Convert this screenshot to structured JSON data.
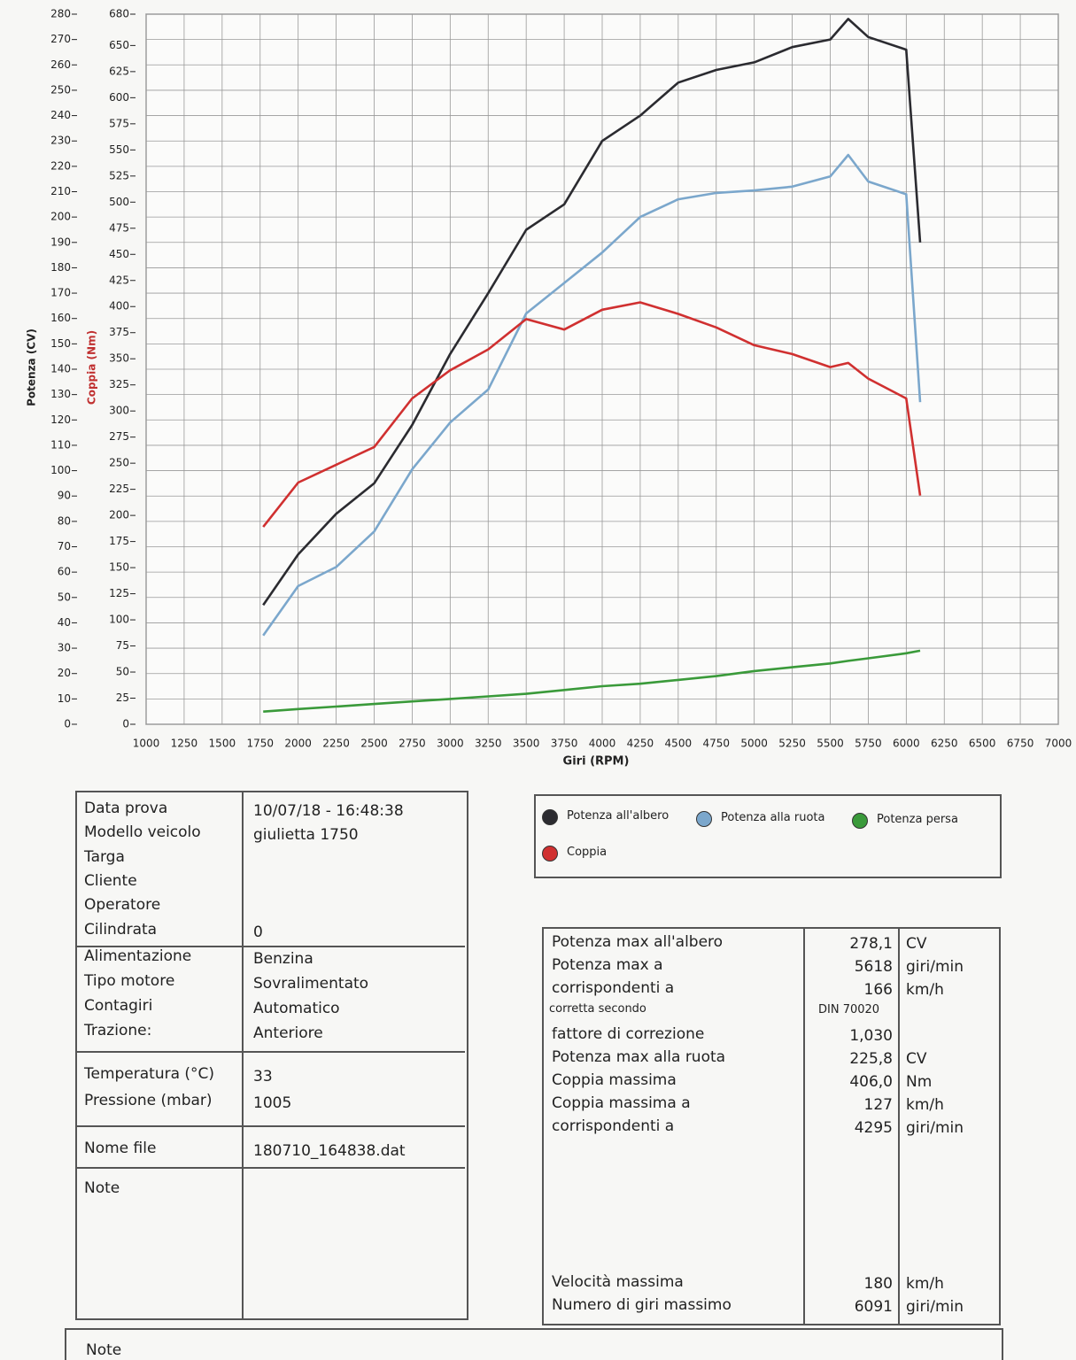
{
  "chart_data": {
    "type": "line",
    "ylabel": "Potenza (CV)",
    "y2label": "Coppia (Nm)",
    "xlabel": "Giri (RPM)",
    "x": [
      1770,
      2000,
      2250,
      2500,
      2750,
      3000,
      3250,
      3500,
      3750,
      4000,
      4250,
      4500,
      4750,
      5000,
      5250,
      5500,
      5618,
      5750,
      6000,
      6091
    ],
    "series": [
      {
        "name": "Potenza all'albero",
        "color": "#2b2b30",
        "values": [
          47,
          67,
          83,
          95,
          118,
          146,
          170,
          195,
          205,
          230,
          240,
          253,
          258,
          261,
          267,
          270,
          278.1,
          271,
          266,
          190
        ]
      },
      {
        "name": "Potenza alla ruota",
        "color": "#7ba7cc",
        "values": [
          35,
          54.5,
          62,
          76,
          100.5,
          119,
          132,
          162,
          174,
          186,
          200,
          207,
          209.5,
          210.5,
          212,
          216,
          224.5,
          214,
          209,
          127
        ]
      },
      {
        "name": "Potenza persa",
        "color": "#3a9a3a",
        "values": [
          5,
          6,
          7,
          8,
          9,
          10,
          11,
          12,
          13.5,
          15,
          16,
          17.5,
          19,
          21,
          22.5,
          24,
          25,
          26,
          28,
          29
        ]
      },
      {
        "name": "Coppia",
        "color": "#d03030",
        "axis": "y2",
        "values": [
          189,
          231.5,
          248.5,
          265.5,
          312,
          339,
          359,
          388,
          378,
          397,
          404,
          393,
          380,
          363,
          354.5,
          342,
          346,
          331,
          312,
          219
        ]
      }
    ],
    "xlim": [
      1000,
      7000
    ],
    "xticks": [
      1000,
      1250,
      1500,
      1750,
      2000,
      2250,
      2500,
      2750,
      3000,
      3250,
      3500,
      3750,
      4000,
      4250,
      4500,
      4750,
      5000,
      5250,
      5500,
      5750,
      6000,
      6250,
      6500,
      6750,
      7000
    ],
    "ylim": [
      0,
      280
    ],
    "yticks": [
      0,
      10,
      20,
      30,
      40,
      50,
      60,
      70,
      80,
      90,
      100,
      110,
      120,
      130,
      140,
      150,
      160,
      170,
      180,
      190,
      200,
      210,
      220,
      230,
      240,
      250,
      260,
      270,
      280
    ],
    "y2lim": [
      0,
      680
    ],
    "y2ticks": [
      0,
      25,
      50,
      75,
      100,
      125,
      150,
      175,
      200,
      225,
      250,
      275,
      300,
      325,
      350,
      375,
      400,
      425,
      450,
      475,
      500,
      525,
      550,
      575,
      600,
      625,
      650,
      680
    ],
    "grid": true
  },
  "info_table": {
    "groups": [
      [
        {
          "label": "Data prova",
          "value": "10/07/18 - 16:48:38"
        },
        {
          "label": "Modello veicolo",
          "value": "giulietta  1750"
        },
        {
          "label": "Targa"
        },
        {
          "label": "Cliente"
        },
        {
          "label": "Operatore"
        },
        {
          "label": "Cilindrata",
          "value": "0"
        }
      ],
      [
        {
          "label": "Alimentazione",
          "value": "Benzina"
        },
        {
          "label": "Tipo motore",
          "value": "Sovralimentato"
        },
        {
          "label": "Contagiri",
          "value": "Automatico"
        },
        {
          "label": "Trazione:",
          "value": "Anteriore"
        }
      ],
      [
        {
          "label": "Temperatura (°C)",
          "value": "33"
        },
        {
          "label": "Pressione (mbar)",
          "value": "1005"
        }
      ],
      [
        {
          "label": "Nome file",
          "value": "180710_164838.dat"
        }
      ],
      [
        {
          "label": "Note"
        }
      ]
    ]
  },
  "results_table": {
    "groups": [
      [
        {
          "label": "Potenza max all'albero",
          "value": "278,1",
          "unit": "CV"
        },
        {
          "label": "Potenza max a",
          "value": "5618",
          "unit": "giri/min"
        },
        {
          "label": "corrispondenti a",
          "value": "166",
          "unit": "km/h"
        },
        {
          "label": "corretta secondo",
          "value": "DIN 70020"
        },
        {
          "label": "fattore di correzione",
          "value": "1,030"
        },
        {
          "label": "Potenza max alla ruota",
          "value": "225,8",
          "unit": "CV"
        },
        {
          "label": "Coppia massima",
          "value": "406,0",
          "unit": "Nm"
        },
        {
          "label": "Coppia massima a",
          "value": "127",
          "unit": "km/h"
        },
        {
          "label": "corrispondenti a",
          "value": "4295",
          "unit": "giri/min"
        }
      ],
      [
        {
          "label": "Velocità massima",
          "value": "180",
          "unit": "km/h"
        },
        {
          "label": "Numero di giri massimo",
          "value": "6091",
          "unit": "giri/min"
        }
      ]
    ]
  },
  "footer_note": "Note"
}
